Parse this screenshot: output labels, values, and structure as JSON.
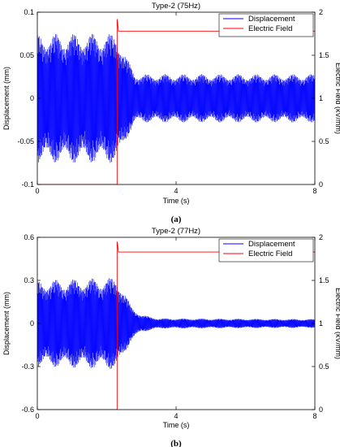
{
  "chart_data": [
    {
      "type": "line",
      "title": "Type-2 (75Hz)",
      "caption": "(a)",
      "xlabel": "Time (s)",
      "ylabel": "Displacement (mm)",
      "y2label": "Electric Field (kV/mm)",
      "xlim": [
        0,
        8
      ],
      "ylim": [
        -0.1,
        0.1
      ],
      "y2lim": [
        0,
        2
      ],
      "xticks": [
        "0",
        "4",
        "8"
      ],
      "yticks": [
        "-0.1",
        "-0.05",
        "0",
        "0.05",
        "0.1"
      ],
      "y2ticks": [
        "0",
        "0.5",
        "1",
        "1.5",
        "2"
      ],
      "legend": {
        "position": "top-right",
        "entries": [
          "Displacement",
          "Electric Field"
        ]
      },
      "colors": {
        "displacement": "#0000ff",
        "field": "#ff0000"
      },
      "series": [
        {
          "name": "Displacement",
          "axis": "left",
          "frequency_hz": 75,
          "envelope_amplitude": [
            [
              0,
              0.075
            ],
            [
              2.3,
              0.075
            ],
            [
              2.4,
              0.065
            ],
            [
              2.6,
              0.045
            ],
            [
              2.8,
              0.03
            ],
            [
              3.0,
              0.028
            ],
            [
              8,
              0.028
            ]
          ],
          "offset": 0.0
        },
        {
          "name": "Electric Field",
          "axis": "right",
          "points": [
            [
              0,
              0
            ],
            [
              2.3,
              0
            ],
            [
              2.3,
              1.92
            ],
            [
              2.34,
              1.78
            ],
            [
              8,
              1.78
            ]
          ]
        }
      ]
    },
    {
      "type": "line",
      "title": "Type-2 (77Hz)",
      "caption": "(b)",
      "xlabel": "Time (s)",
      "ylabel": "Displacement (mm)",
      "y2label": "Electric Field (kV/mm)",
      "xlim": [
        0,
        8
      ],
      "ylim": [
        -0.6,
        0.6
      ],
      "y2lim": [
        0,
        2
      ],
      "xticks": [
        "0",
        "4",
        "8"
      ],
      "yticks": [
        "-0.6",
        "-0.3",
        "0",
        "0.3",
        "0.6"
      ],
      "y2ticks": [
        "0",
        "0.5",
        "1",
        "1.5",
        "2"
      ],
      "legend": {
        "position": "top-right",
        "entries": [
          "Displacement",
          "Electric Field"
        ]
      },
      "colors": {
        "displacement": "#0000ff",
        "field": "#ff0000"
      },
      "series": [
        {
          "name": "Displacement",
          "axis": "left",
          "frequency_hz": 77,
          "envelope_amplitude": [
            [
              0,
              0.3
            ],
            [
              2.3,
              0.32
            ],
            [
              2.45,
              0.25
            ],
            [
              2.7,
              0.12
            ],
            [
              3.0,
              0.06
            ],
            [
              3.5,
              0.035
            ],
            [
              8,
              0.03
            ]
          ],
          "offset": 0.0
        },
        {
          "name": "Electric Field",
          "axis": "right",
          "points": [
            [
              0,
              0
            ],
            [
              2.3,
              0
            ],
            [
              2.3,
              1.95
            ],
            [
              2.34,
              1.83
            ],
            [
              8,
              1.83
            ]
          ]
        }
      ]
    }
  ]
}
